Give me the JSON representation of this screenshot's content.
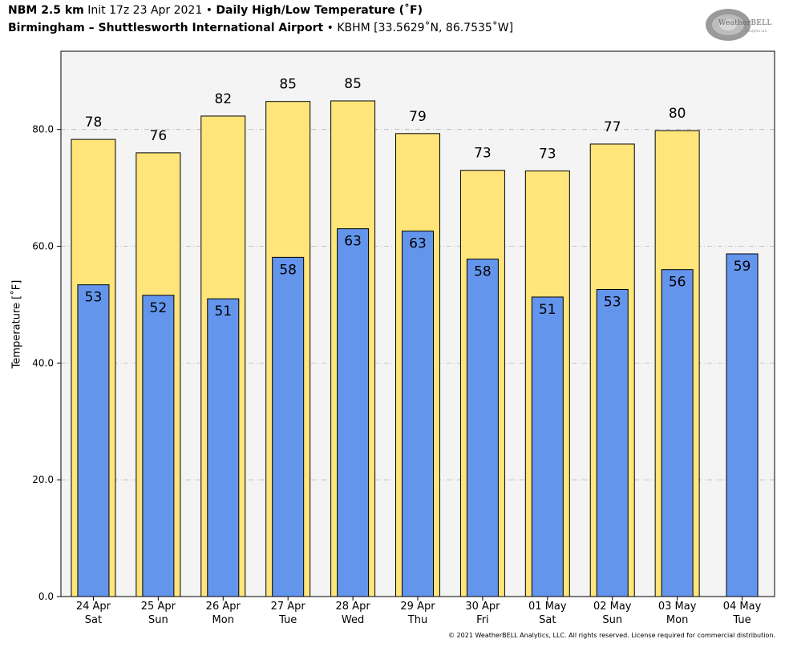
{
  "header": {
    "line1_bold_a": "NBM 2.5 km",
    "line1_init": "Init 17z 23 Apr 2021",
    "line1_sep": "•",
    "line1_bold_b": "Daily High/Low Temperature (˚F)",
    "line2_bold": "Birmingham – Shuttlesworth International Airport",
    "line2_sep": "•",
    "line2_rest": "KBHM [33.5629˚N, 86.7535˚W]"
  },
  "logo": {
    "text": "WeatherBELL",
    "sub": "Analytics LLC"
  },
  "copyright": "© 2021 WeatherBELL Analytics, LLC. All rights reserved. License required for commercial distribution.",
  "colors": {
    "high": "#FFE57A",
    "low": "#6495ED",
    "plot_bg": "#F4F4F4",
    "grid": "#B8B8B8"
  },
  "chart_data": {
    "type": "bar",
    "ylabel": "Temperature [˚F]",
    "ylim": [
      0,
      93.4
    ],
    "yticks": [
      "0.0",
      "20.0",
      "40.0",
      "60.0",
      "80.0"
    ],
    "ytick_values": [
      0,
      20,
      40,
      60,
      80
    ],
    "grid": true,
    "categories": [
      {
        "date": "24 Apr",
        "day": "Sat"
      },
      {
        "date": "25 Apr",
        "day": "Sun"
      },
      {
        "date": "26 Apr",
        "day": "Mon"
      },
      {
        "date": "27 Apr",
        "day": "Tue"
      },
      {
        "date": "28 Apr",
        "day": "Wed"
      },
      {
        "date": "29 Apr",
        "day": "Thu"
      },
      {
        "date": "30 Apr",
        "day": "Fri"
      },
      {
        "date": "01 May",
        "day": "Sat"
      },
      {
        "date": "02 May",
        "day": "Sun"
      },
      {
        "date": "03 May",
        "day": "Mon"
      },
      {
        "date": "04 May",
        "day": "Tue"
      }
    ],
    "series": [
      {
        "values": [
          78.3,
          76.0,
          82.3,
          84.8,
          84.9,
          79.3,
          73.0,
          72.9,
          77.5,
          79.8,
          null
        ],
        "labels": [
          "78",
          "76",
          "82",
          "85",
          "85",
          "79",
          "73",
          "73",
          "77",
          "80",
          ""
        ]
      },
      {
        "values": [
          53.4,
          51.6,
          51.0,
          58.1,
          63.0,
          62.6,
          57.8,
          51.3,
          52.6,
          56.0,
          58.7
        ],
        "labels": [
          "53",
          "52",
          "51",
          "58",
          "63",
          "63",
          "58",
          "51",
          "53",
          "56",
          "59"
        ]
      }
    ]
  }
}
